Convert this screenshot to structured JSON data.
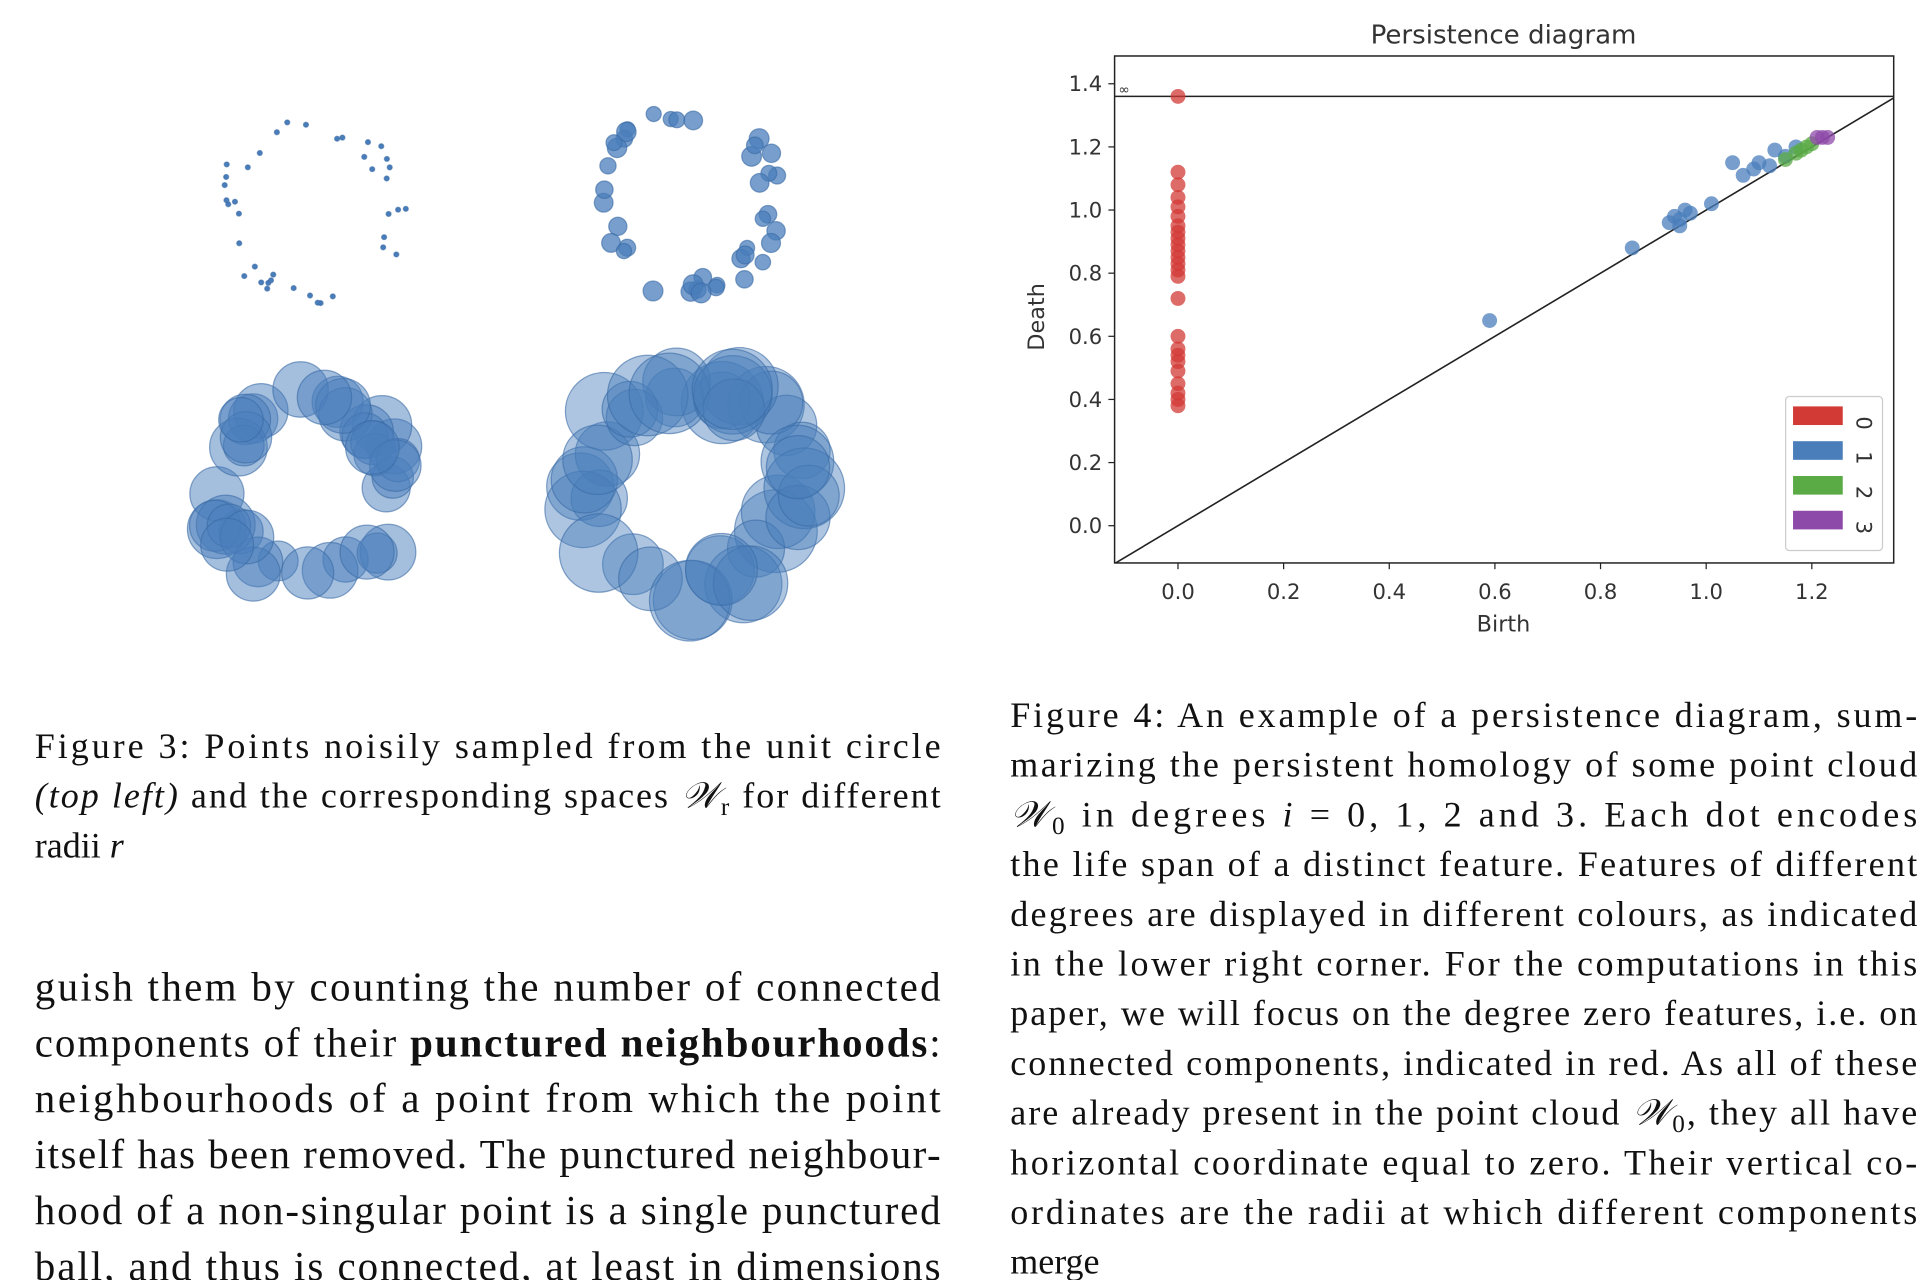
{
  "figure3": {
    "caption": [
      [
        "Figure 3: Points noisily sampled from the unit circle"
      ],
      [
        {
          "text": "(top left)",
          "style": "i"
        },
        " and the corresponding spaces ",
        {
          "text": "𝒲",
          "style": "i"
        },
        {
          "text": "r",
          "style": "sub"
        },
        " for different"
      ],
      [
        "radii ",
        {
          "text": "r",
          "style": "i"
        }
      ]
    ]
  },
  "body": [
    [
      "guish them by counting the number of connected"
    ],
    [
      "components of their ",
      {
        "text": "punctured neighbourhoods",
        "style": "b"
      },
      ":"
    ],
    [
      "neighbourhoods of a point from which the point"
    ],
    [
      "itself has been removed. The punctured neighbour-"
    ],
    [
      "hood of a non-singular point is a single punctured"
    ],
    [
      "ball, and thus is connected, at least in dimensions"
    ]
  ],
  "chart_data": {
    "type": "scatter",
    "title": "Persistence diagram",
    "x_label": "Birth",
    "y_label": "Death",
    "xlim": [
      -0.12,
      1.355
    ],
    "ylim": [
      -0.118,
      1.488
    ],
    "xticks": [
      {
        "value": 0,
        "label": "0.0"
      },
      0.2,
      0.4,
      0.6,
      0.8,
      {
        "value": 1,
        "label": "1.0"
      },
      1.2
    ],
    "yticks": [
      {
        "value": 0,
        "label": "0.0"
      },
      0.2,
      0.4,
      0.6,
      0.8,
      {
        "value": 1,
        "label": "1.0"
      },
      1.2,
      1.4
    ],
    "infinity_line": 1.36,
    "infinity_label": "∞",
    "diagonal": true,
    "legend": "lower right",
    "series": [
      {
        "name": "0",
        "color": "#d13a35",
        "x": [
          0,
          0,
          0,
          0,
          0,
          0,
          0,
          0,
          0,
          0,
          0,
          0,
          0,
          0,
          0,
          0,
          0,
          0,
          0,
          0,
          0,
          0,
          0,
          0,
          0
        ],
        "values": [
          1.36,
          1.12,
          1.08,
          1.04,
          1.01,
          0.98,
          0.95,
          0.93,
          0.91,
          0.89,
          0.87,
          0.85,
          0.83,
          0.81,
          0.79,
          0.72,
          0.6,
          0.56,
          0.54,
          0.52,
          0.49,
          0.45,
          0.42,
          0.4,
          0.38
        ]
      },
      {
        "name": "1",
        "color": "#4a7ebb",
        "x": [
          0.59,
          0.86,
          0.93,
          0.94,
          0.95,
          0.96,
          0.97,
          0.95,
          1.01,
          1.05,
          1.07,
          1.09,
          1.1,
          1.12,
          1.13,
          1.15,
          1.17
        ],
        "values": [
          0.65,
          0.88,
          0.96,
          0.98,
          0.97,
          1.0,
          0.99,
          0.95,
          1.02,
          1.15,
          1.11,
          1.13,
          1.15,
          1.14,
          1.19,
          1.17,
          1.2
        ]
      },
      {
        "name": "2",
        "color": "#5aab46",
        "x": [
          1.15,
          1.17,
          1.18,
          1.19,
          1.2
        ],
        "values": [
          1.16,
          1.18,
          1.19,
          1.2,
          1.21
        ]
      },
      {
        "name": "3",
        "color": "#8e4aa8",
        "x": [
          1.21,
          1.22,
          1.23
        ],
        "values": [
          1.23,
          1.23,
          1.23
        ]
      }
    ]
  },
  "figure4": {
    "caption": [
      [
        "Figure 4: An example of a persistence diagram, sum-"
      ],
      [
        "marizing the persistent homology of some point cloud"
      ],
      [
        {
          "text": "𝒲",
          "style": "i"
        },
        {
          "text": "0",
          "style": "sub"
        },
        " in degrees ",
        {
          "text": "i",
          "style": "i"
        },
        " = 0, 1, 2 and 3. Each dot encodes"
      ],
      [
        "the life span of a distinct feature. Features of different"
      ],
      [
        "degrees are displayed in different colours, as indicated"
      ],
      [
        "in the lower right corner. For the computations in this"
      ],
      [
        "paper, we will focus on the degree zero features, i.e. on"
      ],
      [
        "connected components, indicated in red. As all of these"
      ],
      [
        "are already present in the point cloud ",
        {
          "text": "𝒲",
          "style": "i"
        },
        {
          "text": "0",
          "style": "sub"
        },
        ", they all have"
      ],
      [
        "horizontal coordinate equal to zero. Their vertical co-"
      ],
      [
        "ordinates are the radii at which different components"
      ],
      [
        "merge"
      ]
    ]
  }
}
